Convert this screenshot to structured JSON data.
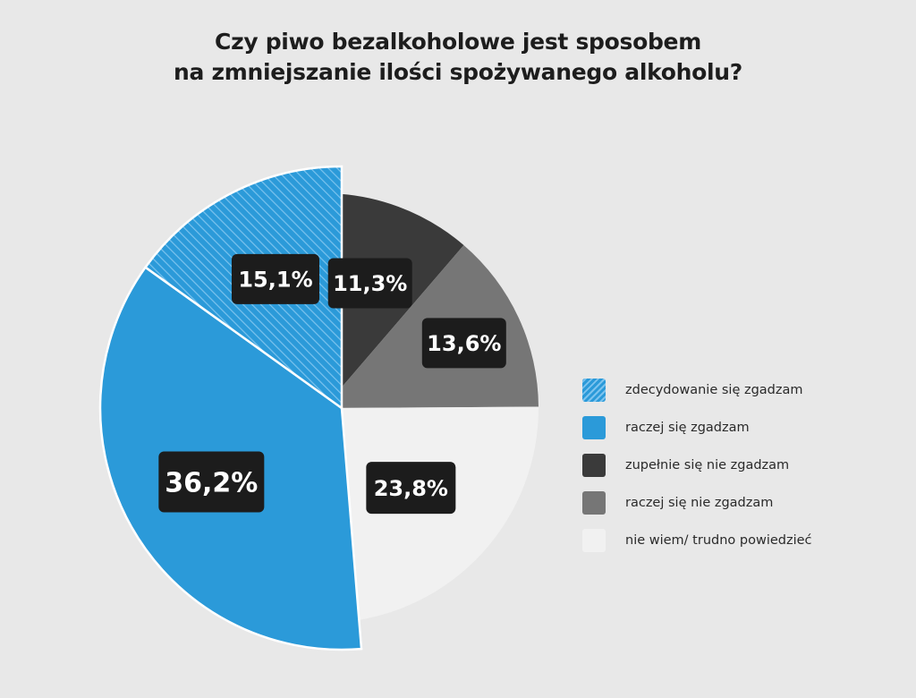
{
  "title": {
    "line1": "Czy piwo bezalkoholowe jest sposobem",
    "line2": "na zmniejszanie ilości spożywanego alkoholu?"
  },
  "chart_data": {
    "type": "pie",
    "title": "Czy piwo bezalkoholowe jest sposobem na zmniejszanie ilości spożywanego alkoholu?",
    "unit": "%",
    "slices": [
      {
        "name": "zupełnie się nie zgadzam",
        "value": 11.3,
        "label": "11,3%",
        "color": "#3a3a3a",
        "pattern": "solid"
      },
      {
        "name": "raczej się nie zgadzam",
        "value": 13.6,
        "label": "13,6%",
        "color": "#767676",
        "pattern": "solid"
      },
      {
        "name": "nie wiem/ trudno powiedzieć",
        "value": 23.8,
        "label": "23,8%",
        "color": "#f1f1f1",
        "pattern": "solid"
      },
      {
        "name": "raczej się zgadzam",
        "value": 36.2,
        "label": "36,2%",
        "color": "#2b9ad9",
        "pattern": "solid",
        "exploded": true
      },
      {
        "name": "zdecydowanie się zgadzam",
        "value": 15.1,
        "label": "15,1%",
        "color": "#2b9ad9",
        "pattern": "hatched",
        "exploded": true
      }
    ],
    "legend_position": "right",
    "legend_order": [
      "zdecydowanie się zgadzam",
      "raczej się zgadzam",
      "zupełnie się nie zgadzam",
      "raczej się nie zgadzam",
      "nie wiem/ trudno powiedzieć"
    ]
  }
}
